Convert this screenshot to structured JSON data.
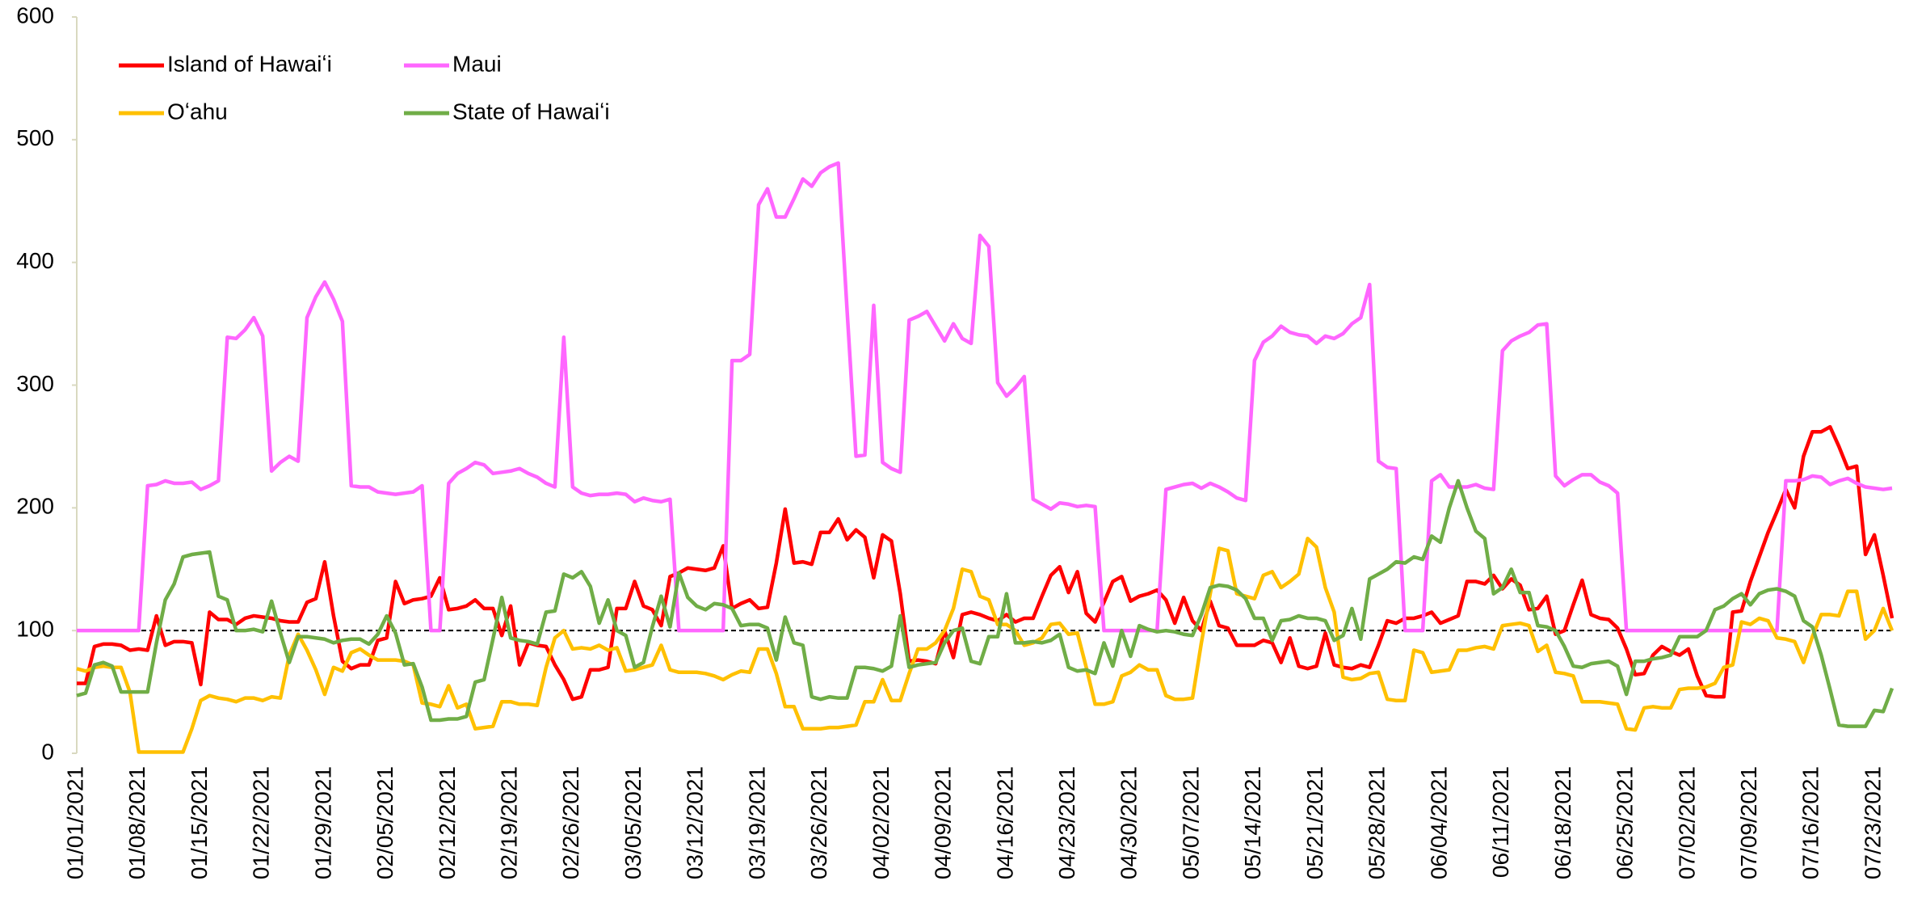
{
  "chart_data": {
    "type": "line",
    "categories": [
      "01/01/2021",
      null,
      null,
      null,
      null,
      null,
      null,
      "01/08/2021",
      null,
      null,
      null,
      null,
      null,
      null,
      "01/15/2021",
      null,
      null,
      null,
      null,
      null,
      null,
      "01/22/2021",
      null,
      null,
      null,
      null,
      null,
      null,
      "01/29/2021",
      null,
      null,
      null,
      null,
      null,
      null,
      "02/05/2021",
      null,
      null,
      null,
      null,
      null,
      null,
      "02/12/2021",
      null,
      null,
      null,
      null,
      null,
      null,
      "02/19/2021",
      null,
      null,
      null,
      null,
      null,
      null,
      "02/26/2021",
      null,
      null,
      null,
      null,
      null,
      null,
      "03/05/2021",
      null,
      null,
      null,
      null,
      null,
      null,
      "03/12/2021",
      null,
      null,
      null,
      null,
      null,
      null,
      "03/19/2021",
      null,
      null,
      null,
      null,
      null,
      null,
      "03/26/2021",
      null,
      null,
      null,
      null,
      null,
      null,
      "04/02/2021",
      null,
      null,
      null,
      null,
      null,
      null,
      "04/09/2021",
      null,
      null,
      null,
      null,
      null,
      null,
      "04/16/2021",
      null,
      null,
      null,
      null,
      null,
      null,
      "04/23/2021",
      null,
      null,
      null,
      null,
      null,
      null,
      "04/30/2021",
      null,
      null,
      null,
      null,
      null,
      null,
      "05/07/2021",
      null,
      null,
      null,
      null,
      null,
      null,
      "05/14/2021",
      null,
      null,
      null,
      null,
      null,
      null,
      "05/21/2021",
      null,
      null,
      null,
      null,
      null,
      null,
      "05/28/2021",
      null,
      null,
      null,
      null,
      null,
      null,
      "06/04/2021",
      null,
      null,
      null,
      null,
      null,
      null,
      "06/11/2021",
      null,
      null,
      null,
      null,
      null,
      null,
      "06/18/2021",
      null,
      null,
      null,
      null,
      null,
      null,
      "06/25/2021",
      null,
      null,
      null,
      null,
      null,
      null,
      "07/02/2021",
      null,
      null,
      null,
      null,
      null,
      null,
      "07/09/2021",
      null,
      null,
      null,
      null,
      null,
      null,
      "07/16/2021",
      null,
      null,
      null,
      null,
      null,
      null,
      "07/23/2021",
      null,
      null
    ],
    "series": [
      {
        "name": "Island of Hawaiʻi",
        "color": "#ff0000",
        "values": [
          57,
          57,
          87,
          89,
          89,
          88,
          84,
          85,
          84,
          112,
          88,
          91,
          91,
          90,
          56,
          115,
          109,
          109,
          105,
          110,
          112,
          111,
          110,
          108,
          107,
          107,
          123,
          126,
          156,
          112,
          75,
          69,
          72,
          72,
          92,
          94,
          140,
          122,
          125,
          126,
          128,
          143,
          117,
          118,
          120,
          125,
          118,
          118,
          96,
          120,
          72,
          90,
          88,
          87,
          72,
          60,
          44,
          46,
          68,
          68,
          70,
          118,
          118,
          140,
          120,
          117,
          104,
          144,
          147,
          151,
          150,
          149,
          151,
          169,
          118,
          122,
          125,
          118,
          119,
          155,
          199,
          155,
          156,
          154,
          180,
          180,
          191,
          174,
          182,
          176,
          143,
          178,
          173,
          130,
          75,
          76,
          75,
          73,
          100,
          78,
          113,
          115,
          113,
          110,
          108,
          113,
          107,
          110,
          110,
          128,
          145,
          152,
          131,
          148,
          114,
          107,
          123,
          140,
          144,
          124,
          128,
          130,
          133,
          125,
          106,
          127,
          108,
          100,
          124,
          104,
          102,
          88,
          88,
          88,
          92,
          90,
          74,
          94,
          71,
          69,
          71,
          98,
          72,
          70,
          69,
          72,
          70,
          88,
          108,
          106,
          110,
          110,
          112,
          115,
          106,
          109,
          112,
          140,
          140,
          138,
          145,
          134,
          142,
          137,
          117,
          118,
          128,
          97,
          100,
          121,
          141,
          113,
          110,
          109,
          102,
          85,
          64,
          65,
          80,
          87,
          83,
          80,
          85,
          63,
          47,
          46,
          46,
          115,
          116,
          140,
          160,
          180,
          197,
          215,
          200,
          242,
          262,
          262,
          266,
          250,
          232,
          234,
          162,
          178,
          145,
          110
        ]
      },
      {
        "name": "Maui",
        "color": "#ff66ff",
        "values": [
          100,
          100,
          100,
          100,
          100,
          100,
          100,
          100,
          218,
          219,
          222,
          220,
          220,
          221,
          215,
          218,
          222,
          339,
          338,
          345,
          355,
          340,
          230,
          237,
          242,
          238,
          355,
          372,
          384,
          370,
          352,
          218,
          217,
          217,
          213,
          212,
          211,
          212,
          213,
          218,
          100,
          100,
          220,
          228,
          232,
          237,
          235,
          228,
          229,
          230,
          232,
          228,
          225,
          220,
          217,
          339,
          217,
          212,
          210,
          211,
          211,
          212,
          211,
          205,
          208,
          206,
          205,
          207,
          100,
          100,
          100,
          100,
          100,
          100,
          320,
          320,
          325,
          447,
          460,
          437,
          437,
          452,
          468,
          462,
          473,
          478,
          481,
          360,
          242,
          243,
          365,
          237,
          232,
          229,
          353,
          356,
          360,
          348,
          336,
          350,
          338,
          334,
          422,
          413,
          302,
          291,
          298,
          307,
          207,
          203,
          199,
          204,
          203,
          201,
          202,
          201,
          100,
          100,
          100,
          100,
          100,
          100,
          100,
          215,
          217,
          219,
          220,
          216,
          220,
          217,
          213,
          208,
          206,
          320,
          335,
          340,
          348,
          343,
          341,
          340,
          334,
          340,
          338,
          342,
          350,
          355,
          382,
          238,
          233,
          232,
          100,
          100,
          100,
          222,
          227,
          217,
          217,
          217,
          219,
          216,
          215,
          328,
          336,
          340,
          343,
          349,
          350,
          226,
          218,
          223,
          227,
          227,
          221,
          218,
          212,
          100,
          100,
          100,
          100,
          100,
          100,
          100,
          100,
          100,
          100,
          100,
          100,
          100,
          100,
          100,
          100,
          100,
          100,
          222,
          222,
          223,
          226,
          225,
          219,
          222,
          224,
          220,
          217,
          216,
          215,
          216
        ]
      },
      {
        "name": "Oʻahu",
        "color": "#ffc000",
        "values": [
          69,
          67,
          70,
          71,
          70,
          70,
          50,
          1,
          1,
          1,
          1,
          1,
          1,
          20,
          43,
          47,
          45,
          44,
          42,
          45,
          45,
          43,
          46,
          45,
          80,
          97,
          84,
          68,
          48,
          70,
          67,
          82,
          85,
          80,
          76,
          76,
          76,
          75,
          72,
          41,
          40,
          38,
          55,
          37,
          40,
          20,
          21,
          22,
          42,
          42,
          40,
          40,
          39,
          70,
          94,
          100,
          85,
          86,
          85,
          88,
          84,
          86,
          67,
          68,
          70,
          72,
          88,
          68,
          66,
          66,
          66,
          65,
          63,
          60,
          64,
          67,
          66,
          85,
          85,
          65,
          38,
          38,
          20,
          20,
          20,
          21,
          21,
          22,
          23,
          42,
          42,
          60,
          43,
          43,
          65,
          85,
          85,
          90,
          100,
          118,
          150,
          148,
          128,
          125,
          105,
          105,
          100,
          88,
          90,
          94,
          105,
          106,
          97,
          98,
          70,
          40,
          40,
          42,
          63,
          66,
          72,
          68,
          68,
          47,
          44,
          44,
          45,
          90,
          130,
          167,
          165,
          130,
          128,
          126,
          145,
          148,
          135,
          140,
          146,
          175,
          168,
          135,
          115,
          62,
          60,
          61,
          65,
          66,
          44,
          43,
          43,
          84,
          82,
          66,
          67,
          68,
          84,
          84,
          86,
          87,
          85,
          104,
          105,
          106,
          104,
          83,
          88,
          66,
          65,
          63,
          42,
          42,
          42,
          41,
          40,
          20,
          19,
          37,
          38,
          37,
          37,
          52,
          53,
          53,
          54,
          57,
          70,
          72,
          107,
          105,
          110,
          108,
          94,
          93,
          91,
          74,
          95,
          113,
          113,
          112,
          132,
          132,
          93,
          100,
          118,
          100
        ]
      },
      {
        "name": "State of Hawaiʻi",
        "color": "#70ad47",
        "values": [
          47,
          49,
          72,
          74,
          71,
          50,
          50,
          50,
          50,
          90,
          125,
          138,
          160,
          162,
          163,
          164,
          128,
          125,
          100,
          100,
          101,
          99,
          124,
          98,
          74,
          95,
          95,
          94,
          93,
          90,
          92,
          93,
          93,
          89,
          97,
          112,
          98,
          72,
          73,
          54,
          27,
          27,
          28,
          28,
          30,
          58,
          60,
          93,
          127,
          94,
          92,
          91,
          89,
          115,
          116,
          146,
          143,
          148,
          136,
          106,
          125,
          100,
          96,
          70,
          74,
          103,
          128,
          103,
          147,
          127,
          120,
          117,
          122,
          121,
          118,
          104,
          105,
          105,
          102,
          76,
          111,
          90,
          88,
          46,
          44,
          46,
          45,
          45,
          70,
          70,
          69,
          67,
          71,
          112,
          70,
          72,
          73,
          74,
          90,
          100,
          102,
          75,
          73,
          95,
          95,
          130,
          90,
          90,
          91,
          90,
          92,
          97,
          70,
          67,
          68,
          65,
          90,
          71,
          100,
          79,
          104,
          101,
          99,
          100,
          99,
          97,
          96,
          113,
          135,
          137,
          136,
          133,
          126,
          110,
          110,
          92,
          108,
          109,
          112,
          110,
          110,
          108,
          92,
          96,
          118,
          93,
          142,
          146,
          150,
          156,
          155,
          160,
          158,
          177,
          172,
          200,
          222,
          200,
          181,
          175,
          130,
          135,
          150,
          131,
          131,
          104,
          103,
          100,
          87,
          71,
          70,
          73,
          74,
          75,
          71,
          48,
          75,
          75,
          77,
          78,
          80,
          95,
          95,
          95,
          100,
          117,
          120,
          126,
          130,
          121,
          130,
          133,
          134,
          132,
          128,
          108,
          103,
          80,
          52,
          23,
          22,
          22,
          22,
          35,
          34,
          53
        ]
      }
    ],
    "reference_line": 100,
    "ylim": [
      0,
      600
    ],
    "yticks": [
      0,
      100,
      200,
      300,
      400,
      500,
      600
    ],
    "grid": false,
    "legend": "top-left"
  }
}
